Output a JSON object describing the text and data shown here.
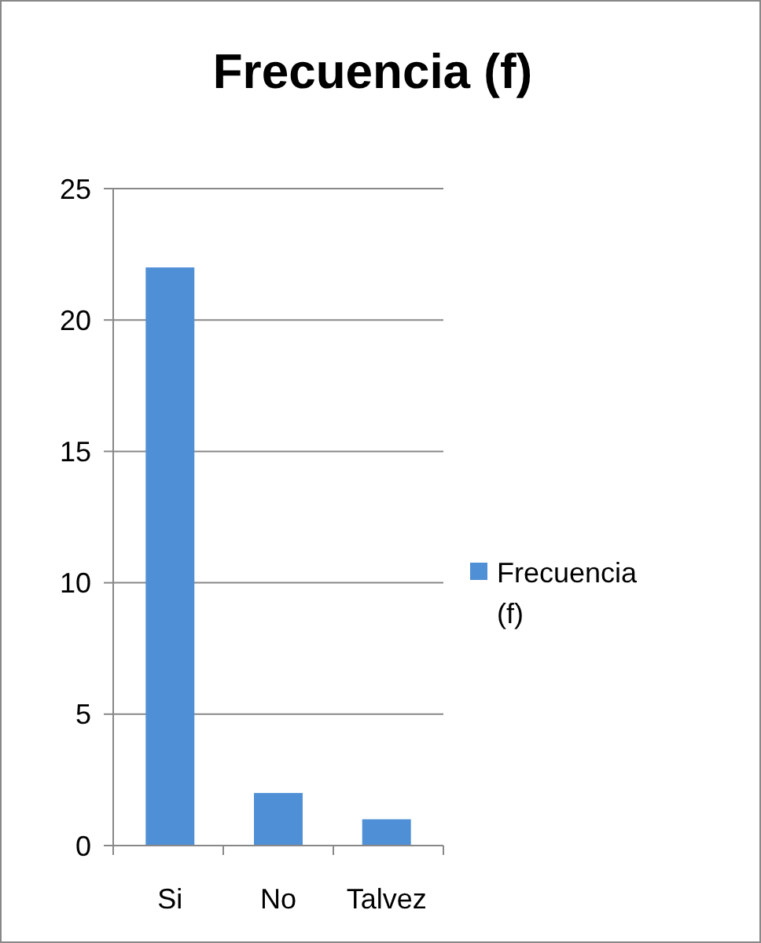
{
  "chart_data": {
    "type": "bar",
    "title": "Frecuencia (f)",
    "categories": [
      "Si",
      "No",
      "Talvez"
    ],
    "series": [
      {
        "name": "Frecuencia (f)",
        "color": "#4f8fd6",
        "values": [
          22,
          2,
          1
        ]
      }
    ],
    "ylim": [
      0,
      25
    ],
    "yticks": [
      0,
      5,
      10,
      15,
      20,
      25
    ],
    "grid": "y",
    "legend": "right"
  }
}
